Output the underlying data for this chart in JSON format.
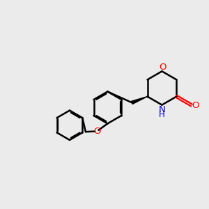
{
  "bg_color": "#ebebeb",
  "bond_color": "#000000",
  "O_color": "#ff0000",
  "N_color": "#0000cc",
  "bond_width": 1.8,
  "figsize": [
    3.0,
    3.0
  ],
  "dpi": 100,
  "xlim": [
    0,
    10
  ],
  "ylim": [
    0,
    10
  ]
}
